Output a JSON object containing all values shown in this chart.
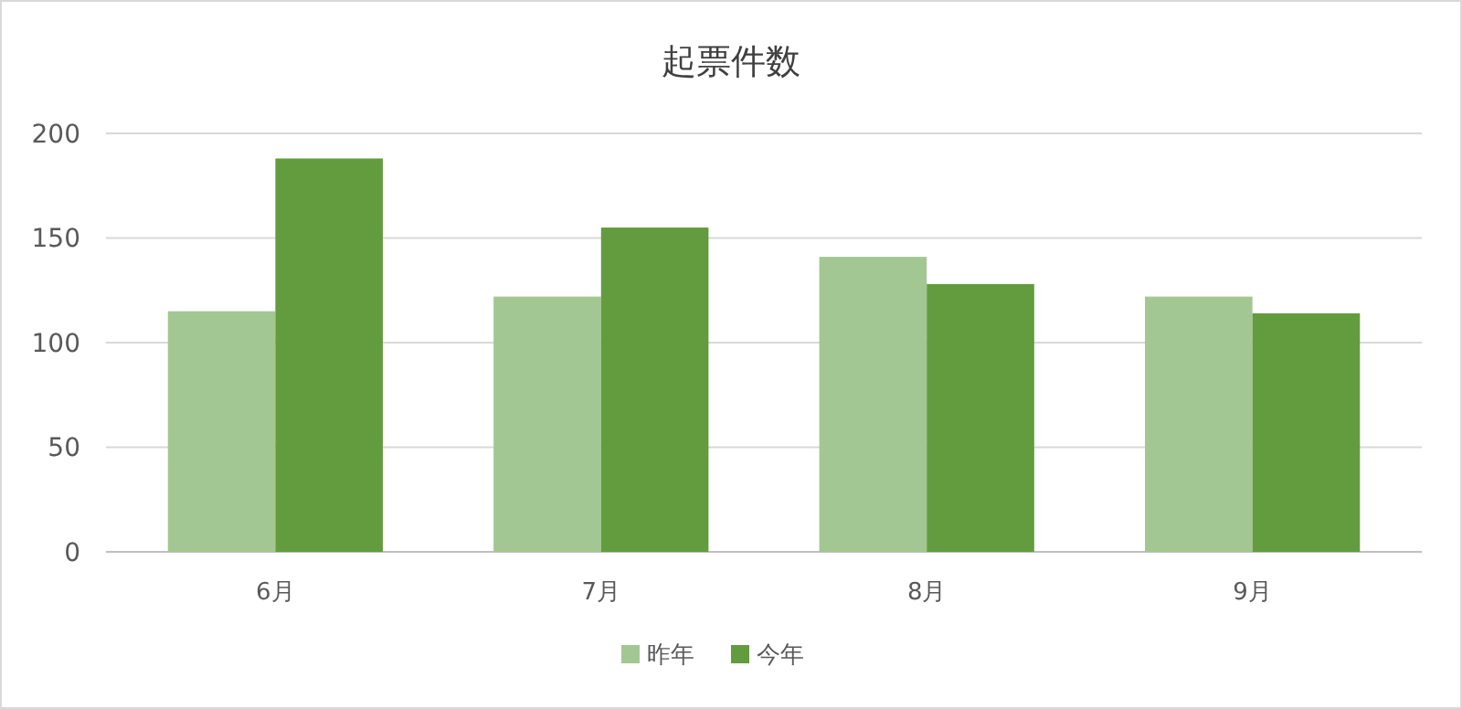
{
  "chart_data": {
    "type": "bar",
    "title": "起票件数",
    "categories": [
      "6月",
      "7月",
      "8月",
      "9月"
    ],
    "series": [
      {
        "name": "昨年",
        "color": "#a3c793",
        "values": [
          115,
          122,
          141,
          122
        ]
      },
      {
        "name": "今年",
        "color": "#639c3e",
        "values": [
          188,
          155,
          128,
          114
        ]
      }
    ],
    "ylim": [
      0,
      200
    ],
    "yticks": [
      0,
      50,
      100,
      150,
      200
    ],
    "grid": "y",
    "legend": "bottom"
  }
}
